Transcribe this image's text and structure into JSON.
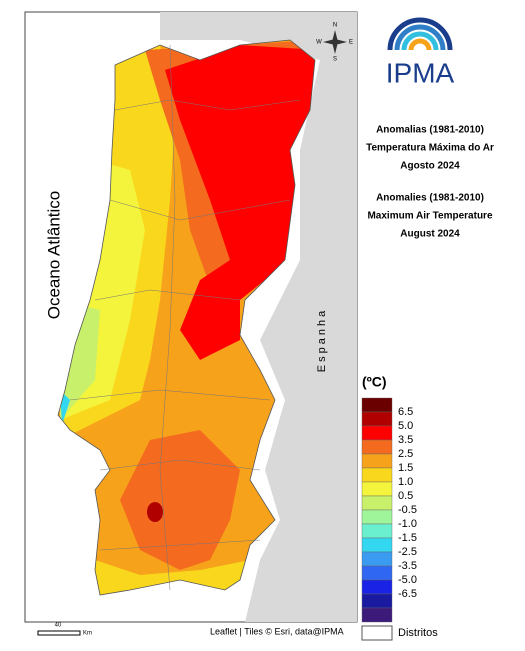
{
  "logo": "IPMA",
  "title_pt": [
    "Anomalias (1981-2010)",
    "Temperatura Máxima do Ar",
    "Agosto 2024"
  ],
  "title_en": [
    "Anomalies (1981-2010)",
    "Maximum Air Temperature",
    "August 2024"
  ],
  "ocean_label": "Oceano Atlântico",
  "country_label": "Espanha",
  "legend": {
    "unit": "(ºC)",
    "colors": [
      "#6b0000",
      "#b00000",
      "#ff0000",
      "#f46a1e",
      "#f7a21b",
      "#f9d71c",
      "#f3f43b",
      "#c8f06a",
      "#9ff59a",
      "#6af0cf",
      "#33d7f0",
      "#3a9bf0",
      "#2f66f2",
      "#1a22e6",
      "#1a1aa0",
      "#3c1a7a"
    ],
    "labels": [
      "6.5",
      "5.0",
      "3.5",
      "2.5",
      "1.5",
      "1.0",
      "0.5",
      "-0.5",
      "-1.0",
      "-1.5",
      "-2.5",
      "-3.5",
      "-5.0",
      "-6.5"
    ]
  },
  "districts_label": "Distritos",
  "attribution": "Leaflet | Tiles © Esri, data@IPMA",
  "scale": {
    "value": "40",
    "unit": "Km"
  },
  "compass": {
    "n": "N",
    "s": "S",
    "e": "E",
    "w": "W"
  }
}
